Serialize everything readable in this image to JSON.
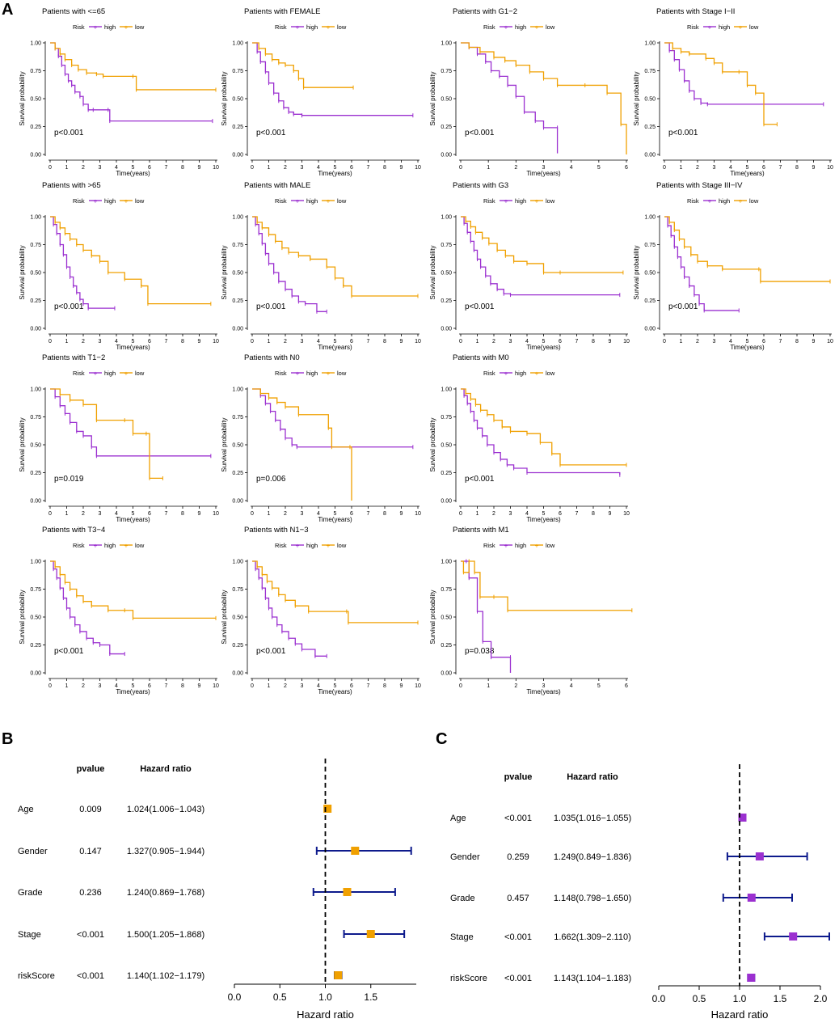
{
  "figure": {
    "panel_a_letter": "A",
    "panel_b_letter": "B",
    "panel_c_letter": "C"
  },
  "colors": {
    "high": "#9b30d0",
    "low": "#f0a000",
    "forest_b_box": "#f0a000",
    "forest_c_box": "#9b30d0",
    "whisker": "#0d1a8c",
    "axis": "#000000"
  },
  "km_common": {
    "legend_title": "Risk",
    "legend_high": "high",
    "legend_low": "low",
    "ylabel": "Survival probability",
    "xlabel": "Time(years)",
    "yticks": [
      "0.00",
      "0.25",
      "0.50",
      "0.75",
      "1.00"
    ]
  },
  "chart_data": [
    {
      "type": "line",
      "panel": "A1",
      "title": "Patients with <=65",
      "pvalue": "p<0.001",
      "xmax": 10,
      "series": [
        {
          "name": "high",
          "x": [
            0,
            0.3,
            0.5,
            0.7,
            0.9,
            1.1,
            1.3,
            1.5,
            1.8,
            2.0,
            2.3,
            2.6,
            3.5,
            3.6,
            9.8
          ],
          "y": [
            1.0,
            0.95,
            0.88,
            0.8,
            0.72,
            0.66,
            0.62,
            0.56,
            0.52,
            0.45,
            0.4,
            0.4,
            0.4,
            0.3,
            0.3
          ]
        },
        {
          "name": "low",
          "x": [
            0,
            0.3,
            0.6,
            0.9,
            1.3,
            1.7,
            2.2,
            2.8,
            3.2,
            5.0,
            5.2,
            10.0
          ],
          "y": [
            1.0,
            0.95,
            0.9,
            0.85,
            0.8,
            0.76,
            0.73,
            0.72,
            0.7,
            0.7,
            0.58,
            0.58
          ]
        }
      ]
    },
    {
      "type": "line",
      "panel": "A2",
      "title": "Patients with FEMALE",
      "pvalue": "p<0.001",
      "xmax": 10,
      "series": [
        {
          "name": "high",
          "x": [
            0,
            0.3,
            0.5,
            0.8,
            1.0,
            1.3,
            1.6,
            1.9,
            2.2,
            2.5,
            3.0,
            9.7
          ],
          "y": [
            1.0,
            0.92,
            0.83,
            0.74,
            0.64,
            0.55,
            0.48,
            0.42,
            0.38,
            0.36,
            0.35,
            0.35
          ]
        },
        {
          "name": "low",
          "x": [
            0,
            0.4,
            0.8,
            1.2,
            1.6,
            2.0,
            2.5,
            2.8,
            3.1,
            6.1
          ],
          "y": [
            1.0,
            0.95,
            0.9,
            0.85,
            0.82,
            0.8,
            0.75,
            0.68,
            0.6,
            0.6
          ]
        }
      ]
    },
    {
      "type": "line",
      "panel": "A3",
      "title": "Patients with G1−2",
      "pvalue": "p<0.001",
      "xmax": 6,
      "series": [
        {
          "name": "high",
          "x": [
            0,
            0.3,
            0.6,
            0.9,
            1.1,
            1.4,
            1.7,
            2.0,
            2.3,
            2.7,
            3.0,
            3.5,
            3.5
          ],
          "y": [
            1.0,
            0.96,
            0.9,
            0.83,
            0.75,
            0.7,
            0.62,
            0.52,
            0.38,
            0.3,
            0.24,
            0.24,
            0.01
          ]
        },
        {
          "name": "low",
          "x": [
            0,
            0.3,
            0.7,
            1.2,
            1.6,
            2.0,
            2.5,
            3.0,
            3.5,
            4.5,
            5.3,
            5.8,
            6.0
          ],
          "y": [
            1.0,
            0.96,
            0.92,
            0.87,
            0.84,
            0.8,
            0.74,
            0.68,
            0.62,
            0.62,
            0.55,
            0.27,
            0.0
          ]
        }
      ]
    },
    {
      "type": "line",
      "panel": "A4",
      "title": "Patients with Stage I−II",
      "pvalue": "p<0.001",
      "xmax": 10,
      "series": [
        {
          "name": "high",
          "x": [
            0,
            0.3,
            0.6,
            0.9,
            1.2,
            1.5,
            1.8,
            2.2,
            2.6,
            9.6
          ],
          "y": [
            1.0,
            0.93,
            0.85,
            0.76,
            0.66,
            0.57,
            0.5,
            0.46,
            0.45,
            0.45
          ]
        },
        {
          "name": "low",
          "x": [
            0,
            0.5,
            1.0,
            1.5,
            2.5,
            3.0,
            3.5,
            4.5,
            5.0,
            5.5,
            6.0,
            6.8
          ],
          "y": [
            1.0,
            0.95,
            0.92,
            0.9,
            0.86,
            0.82,
            0.74,
            0.74,
            0.62,
            0.55,
            0.27,
            0.27
          ]
        }
      ]
    },
    {
      "type": "line",
      "panel": "A5",
      "title": "Patients with >65",
      "pvalue": "p<0.001",
      "xmax": 10,
      "series": [
        {
          "name": "high",
          "x": [
            0,
            0.2,
            0.4,
            0.6,
            0.8,
            1.0,
            1.2,
            1.4,
            1.6,
            1.8,
            2.0,
            2.3,
            3.9
          ],
          "y": [
            1.0,
            0.93,
            0.85,
            0.75,
            0.66,
            0.55,
            0.46,
            0.38,
            0.32,
            0.26,
            0.22,
            0.18,
            0.18
          ]
        },
        {
          "name": "low",
          "x": [
            0,
            0.3,
            0.6,
            0.9,
            1.2,
            1.6,
            2.0,
            2.5,
            3.0,
            3.5,
            4.5,
            5.5,
            5.9,
            9.7
          ],
          "y": [
            1.0,
            0.95,
            0.9,
            0.85,
            0.8,
            0.75,
            0.7,
            0.65,
            0.6,
            0.5,
            0.44,
            0.38,
            0.22,
            0.22
          ]
        }
      ]
    },
    {
      "type": "line",
      "panel": "A6",
      "title": "Patients with MALE",
      "pvalue": "p<0.001",
      "xmax": 10,
      "series": [
        {
          "name": "high",
          "x": [
            0,
            0.2,
            0.4,
            0.6,
            0.8,
            1.0,
            1.3,
            1.6,
            2.0,
            2.4,
            2.8,
            3.2,
            3.9,
            4.5
          ],
          "y": [
            1.0,
            0.93,
            0.85,
            0.76,
            0.67,
            0.58,
            0.5,
            0.42,
            0.35,
            0.29,
            0.24,
            0.22,
            0.15,
            0.15
          ]
        },
        {
          "name": "low",
          "x": [
            0,
            0.3,
            0.6,
            1.0,
            1.4,
            1.8,
            2.2,
            2.8,
            3.5,
            4.5,
            5.0,
            5.5,
            6.0,
            10.0
          ],
          "y": [
            1.0,
            0.95,
            0.9,
            0.84,
            0.78,
            0.72,
            0.68,
            0.65,
            0.62,
            0.55,
            0.45,
            0.38,
            0.29,
            0.29
          ]
        }
      ]
    },
    {
      "type": "line",
      "panel": "A7",
      "title": "Patients with G3",
      "pvalue": "p<0.001",
      "xmax": 10,
      "series": [
        {
          "name": "high",
          "x": [
            0,
            0.2,
            0.4,
            0.6,
            0.8,
            1.0,
            1.2,
            1.5,
            1.8,
            2.2,
            2.6,
            3.0,
            9.6
          ],
          "y": [
            1.0,
            0.94,
            0.86,
            0.78,
            0.7,
            0.62,
            0.55,
            0.47,
            0.4,
            0.35,
            0.31,
            0.3,
            0.3
          ]
        },
        {
          "name": "low",
          "x": [
            0,
            0.3,
            0.6,
            0.9,
            1.3,
            1.7,
            2.2,
            2.7,
            3.2,
            4.0,
            5.0,
            6.0,
            9.8
          ],
          "y": [
            1.0,
            0.96,
            0.91,
            0.86,
            0.81,
            0.76,
            0.7,
            0.65,
            0.6,
            0.58,
            0.5,
            0.5,
            0.5
          ]
        }
      ]
    },
    {
      "type": "line",
      "panel": "A8",
      "title": "Patients with Stage III−IV",
      "pvalue": "p<0.001",
      "xmax": 10,
      "series": [
        {
          "name": "high",
          "x": [
            0,
            0.2,
            0.4,
            0.6,
            0.8,
            1.0,
            1.2,
            1.5,
            1.8,
            2.1,
            2.4,
            4.5
          ],
          "y": [
            1.0,
            0.92,
            0.83,
            0.73,
            0.64,
            0.55,
            0.46,
            0.38,
            0.3,
            0.22,
            0.16,
            0.16
          ]
        },
        {
          "name": "low",
          "x": [
            0,
            0.3,
            0.6,
            0.9,
            1.2,
            1.6,
            2.0,
            2.6,
            3.5,
            5.7,
            5.8,
            10.0
          ],
          "y": [
            1.0,
            0.95,
            0.88,
            0.8,
            0.73,
            0.66,
            0.6,
            0.56,
            0.53,
            0.53,
            0.42,
            0.42
          ]
        }
      ]
    },
    {
      "type": "line",
      "panel": "A9",
      "title": "Patients with T1−2",
      "pvalue": "p=0.019",
      "xmax": 10,
      "series": [
        {
          "name": "high",
          "x": [
            0,
            0.3,
            0.6,
            0.9,
            1.2,
            1.6,
            2.0,
            2.5,
            2.8,
            9.7
          ],
          "y": [
            1.0,
            0.93,
            0.85,
            0.78,
            0.7,
            0.62,
            0.58,
            0.48,
            0.4,
            0.4
          ]
        },
        {
          "name": "low",
          "x": [
            0,
            0.6,
            1.2,
            2.0,
            2.8,
            4.5,
            5.0,
            5.8,
            6.0,
            6.8
          ],
          "y": [
            1.0,
            0.95,
            0.9,
            0.86,
            0.72,
            0.72,
            0.6,
            0.6,
            0.2,
            0.2
          ]
        }
      ]
    },
    {
      "type": "line",
      "panel": "A10",
      "title": "Patients with N0",
      "pvalue": "p=0.006",
      "xmax": 10,
      "series": [
        {
          "name": "high",
          "x": [
            0,
            0.5,
            0.8,
            1.1,
            1.4,
            1.7,
            2.0,
            2.4,
            2.7,
            9.7
          ],
          "y": [
            1.0,
            0.94,
            0.87,
            0.8,
            0.72,
            0.64,
            0.56,
            0.5,
            0.48,
            0.48
          ]
        },
        {
          "name": "low",
          "x": [
            0,
            0.5,
            1.0,
            1.5,
            2.0,
            2.8,
            4.6,
            4.8,
            5.9,
            6.0
          ],
          "y": [
            1.0,
            0.96,
            0.92,
            0.88,
            0.84,
            0.77,
            0.65,
            0.48,
            0.48,
            0.0
          ]
        }
      ]
    },
    {
      "type": "line",
      "panel": "A11",
      "title": "Patients with M0",
      "pvalue": "p<0.001",
      "xmax": 10,
      "series": [
        {
          "name": "high",
          "x": [
            0,
            0.2,
            0.4,
            0.6,
            0.8,
            1.0,
            1.3,
            1.6,
            2.0,
            2.4,
            2.8,
            3.2,
            4.0,
            9.6
          ],
          "y": [
            1.0,
            0.94,
            0.87,
            0.8,
            0.72,
            0.65,
            0.58,
            0.5,
            0.43,
            0.37,
            0.32,
            0.29,
            0.25,
            0.23
          ]
        },
        {
          "name": "low",
          "x": [
            0,
            0.3,
            0.6,
            0.9,
            1.2,
            1.6,
            2.0,
            2.5,
            3.0,
            4.0,
            4.8,
            5.5,
            6.0,
            10.0
          ],
          "y": [
            1.0,
            0.96,
            0.91,
            0.86,
            0.81,
            0.77,
            0.72,
            0.66,
            0.62,
            0.6,
            0.52,
            0.42,
            0.32,
            0.32
          ]
        }
      ]
    },
    {
      "type": "line",
      "panel": "A12",
      "title": "Patients with T3−4",
      "pvalue": "p<0.001",
      "xmax": 10,
      "series": [
        {
          "name": "high",
          "x": [
            0,
            0.2,
            0.4,
            0.6,
            0.8,
            1.0,
            1.2,
            1.5,
            1.8,
            2.2,
            2.6,
            3.0,
            3.6,
            4.5
          ],
          "y": [
            1.0,
            0.93,
            0.85,
            0.76,
            0.67,
            0.58,
            0.5,
            0.43,
            0.37,
            0.31,
            0.27,
            0.25,
            0.17,
            0.17
          ]
        },
        {
          "name": "low",
          "x": [
            0,
            0.3,
            0.6,
            0.9,
            1.2,
            1.6,
            2.0,
            2.5,
            3.5,
            4.5,
            5.0,
            10.0
          ],
          "y": [
            1.0,
            0.95,
            0.88,
            0.81,
            0.75,
            0.69,
            0.64,
            0.6,
            0.56,
            0.56,
            0.49,
            0.49
          ]
        }
      ]
    },
    {
      "type": "line",
      "panel": "A13",
      "title": "Patients with N1−3",
      "pvalue": "p<0.001",
      "xmax": 10,
      "series": [
        {
          "name": "high",
          "x": [
            0,
            0.2,
            0.4,
            0.6,
            0.8,
            1.0,
            1.2,
            1.5,
            1.8,
            2.2,
            2.6,
            3.0,
            3.8,
            4.5
          ],
          "y": [
            1.0,
            0.93,
            0.85,
            0.76,
            0.67,
            0.58,
            0.5,
            0.43,
            0.37,
            0.31,
            0.26,
            0.21,
            0.15,
            0.15
          ]
        },
        {
          "name": "low",
          "x": [
            0,
            0.3,
            0.6,
            0.9,
            1.2,
            1.6,
            2.0,
            2.6,
            3.4,
            5.7,
            5.8,
            10.0
          ],
          "y": [
            1.0,
            0.95,
            0.88,
            0.82,
            0.76,
            0.7,
            0.65,
            0.6,
            0.55,
            0.55,
            0.45,
            0.45
          ]
        }
      ]
    },
    {
      "type": "line",
      "panel": "A14",
      "title": "Patients with M1",
      "pvalue": "p=0.038",
      "xmax": 6,
      "series": [
        {
          "name": "high",
          "x": [
            0,
            0.2,
            0.3,
            0.6,
            0.8,
            1.1,
            1.8,
            1.8
          ],
          "y": [
            1.0,
            1.0,
            0.85,
            0.55,
            0.28,
            0.14,
            0.14,
            0.0
          ]
        },
        {
          "name": "low",
          "x": [
            0,
            0.1,
            0.3,
            0.5,
            0.7,
            1.2,
            1.7,
            6.2
          ],
          "y": [
            1.0,
            0.9,
            1.0,
            0.9,
            0.68,
            0.68,
            0.56,
            0.56
          ]
        }
      ]
    },
    {
      "type": "forest",
      "panel": "B",
      "col_pvalue": "pvalue",
      "col_hr": "Hazard ratio",
      "xlabel": "Hazard ratio",
      "xticks": [
        "0.0",
        "0.5",
        "1.0",
        "1.5"
      ],
      "xlim": [
        0,
        2.0
      ],
      "ref": 1.0,
      "rows": [
        {
          "label": "Age",
          "pvalue": "0.009",
          "hr_text": "1.024(1.006−1.043)",
          "hr": 1.024,
          "lo": 1.006,
          "hi": 1.043
        },
        {
          "label": "Gender",
          "pvalue": "0.147",
          "hr_text": "1.327(0.905−1.944)",
          "hr": 1.327,
          "lo": 0.905,
          "hi": 1.944
        },
        {
          "label": "Grade",
          "pvalue": "0.236",
          "hr_text": "1.240(0.869−1.768)",
          "hr": 1.24,
          "lo": 0.869,
          "hi": 1.768
        },
        {
          "label": "Stage",
          "pvalue": "<0.001",
          "hr_text": "1.500(1.205−1.868)",
          "hr": 1.5,
          "lo": 1.205,
          "hi": 1.868
        },
        {
          "label": "riskScore",
          "pvalue": "<0.001",
          "hr_text": "1.140(1.102−1.179)",
          "hr": 1.14,
          "lo": 1.102,
          "hi": 1.179
        }
      ]
    },
    {
      "type": "forest",
      "panel": "C",
      "col_pvalue": "pvalue",
      "col_hr": "Hazard ratio",
      "xlabel": "Hazard ratio",
      "xticks": [
        "0.0",
        "0.5",
        "1.0",
        "1.5",
        "2.0"
      ],
      "xlim": [
        0,
        2.0
      ],
      "ref": 1.0,
      "rows": [
        {
          "label": "Age",
          "pvalue": "<0.001",
          "hr_text": "1.035(1.016−1.055)",
          "hr": 1.035,
          "lo": 1.016,
          "hi": 1.055
        },
        {
          "label": "Gender",
          "pvalue": "0.259",
          "hr_text": "1.249(0.849−1.836)",
          "hr": 1.249,
          "lo": 0.849,
          "hi": 1.836
        },
        {
          "label": "Grade",
          "pvalue": "0.457",
          "hr_text": "1.148(0.798−1.650)",
          "hr": 1.148,
          "lo": 0.798,
          "hi": 1.65
        },
        {
          "label": "Stage",
          "pvalue": "<0.001",
          "hr_text": "1.662(1.309−2.110)",
          "hr": 1.662,
          "lo": 1.309,
          "hi": 2.11
        },
        {
          "label": "riskScore",
          "pvalue": "<0.001",
          "hr_text": "1.143(1.104−1.183)",
          "hr": 1.143,
          "lo": 1.104,
          "hi": 1.183
        }
      ]
    }
  ]
}
